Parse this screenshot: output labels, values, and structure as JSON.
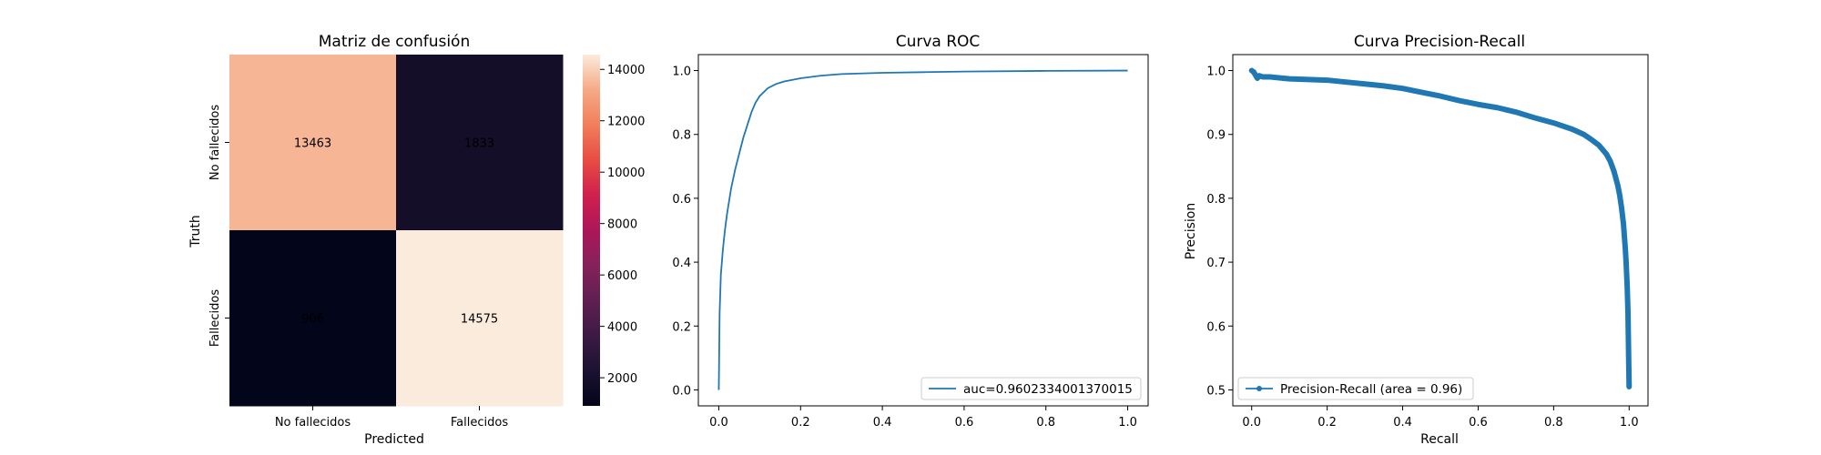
{
  "chart_data": [
    {
      "type": "heatmap",
      "title": "Matriz de confusión",
      "xlabel": "Predicted",
      "ylabel": "Truth",
      "x_categories": [
        "No fallecidos",
        "Fallecidos"
      ],
      "y_categories": [
        "No fallecidos",
        "Fallecidos"
      ],
      "values": [
        [
          13463,
          1833
        ],
        [
          906,
          14575
        ]
      ],
      "colorbar": {
        "min": 906,
        "max": 14575,
        "ticks": [
          2000,
          4000,
          6000,
          8000,
          10000,
          12000,
          14000
        ]
      },
      "colormap": "rocket"
    },
    {
      "type": "line",
      "title": "Curva ROC",
      "xlabel": "",
      "ylabel": "",
      "xlim": [
        -0.05,
        1.05
      ],
      "ylim": [
        -0.05,
        1.05
      ],
      "xticks": [
        "0.0",
        "0.2",
        "0.4",
        "0.6",
        "0.8",
        "1.0"
      ],
      "yticks": [
        "0.0",
        "0.2",
        "0.4",
        "0.6",
        "0.8",
        "1.0"
      ],
      "legend_position": "lower-right",
      "color": "#1f77b4",
      "series": [
        {
          "name": "auc=0.9602334001370015",
          "x": [
            0,
            0.002,
            0.005,
            0.01,
            0.015,
            0.02,
            0.03,
            0.04,
            0.05,
            0.06,
            0.07,
            0.08,
            0.09,
            0.1,
            0.12,
            0.14,
            0.16,
            0.2,
            0.25,
            0.3,
            0.4,
            0.5,
            0.6,
            0.8,
            1.0
          ],
          "y": [
            0,
            0.24,
            0.36,
            0.44,
            0.5,
            0.55,
            0.63,
            0.69,
            0.74,
            0.79,
            0.83,
            0.87,
            0.9,
            0.92,
            0.945,
            0.958,
            0.966,
            0.976,
            0.984,
            0.989,
            0.993,
            0.995,
            0.997,
            0.999,
            1.0
          ]
        }
      ]
    },
    {
      "type": "line",
      "title": "Curva Precision-Recall",
      "xlabel": "Recall",
      "ylabel": "Precision",
      "xlim": [
        -0.05,
        1.05
      ],
      "ylim": [
        0.475,
        1.025
      ],
      "xticks": [
        "0.0",
        "0.2",
        "0.4",
        "0.6",
        "0.8",
        "1.0"
      ],
      "yticks": [
        "0.5",
        "0.6",
        "0.7",
        "0.8",
        "0.9",
        "1.0"
      ],
      "legend_position": "lower-left",
      "color": "#1f77b4",
      "series": [
        {
          "name": "Precision-Recall (area = 0.96)",
          "x": [
            0.0,
            0.005,
            0.01,
            0.015,
            0.02,
            0.03,
            0.05,
            0.1,
            0.15,
            0.2,
            0.25,
            0.3,
            0.35,
            0.4,
            0.45,
            0.5,
            0.55,
            0.6,
            0.65,
            0.7,
            0.75,
            0.8,
            0.85,
            0.88,
            0.9,
            0.92,
            0.94,
            0.95,
            0.96,
            0.97,
            0.975,
            0.98,
            0.985,
            0.99,
            0.992,
            0.995,
            0.997,
            0.998,
            0.999,
            1.0
          ],
          "y": [
            1.0,
            0.998,
            0.993,
            0.988,
            0.992,
            0.99,
            0.99,
            0.987,
            0.986,
            0.985,
            0.982,
            0.979,
            0.976,
            0.972,
            0.966,
            0.96,
            0.953,
            0.947,
            0.942,
            0.935,
            0.926,
            0.918,
            0.908,
            0.9,
            0.892,
            0.883,
            0.869,
            0.858,
            0.842,
            0.82,
            0.805,
            0.785,
            0.76,
            0.72,
            0.7,
            0.66,
            0.62,
            0.58,
            0.54,
            0.505
          ]
        }
      ]
    }
  ]
}
